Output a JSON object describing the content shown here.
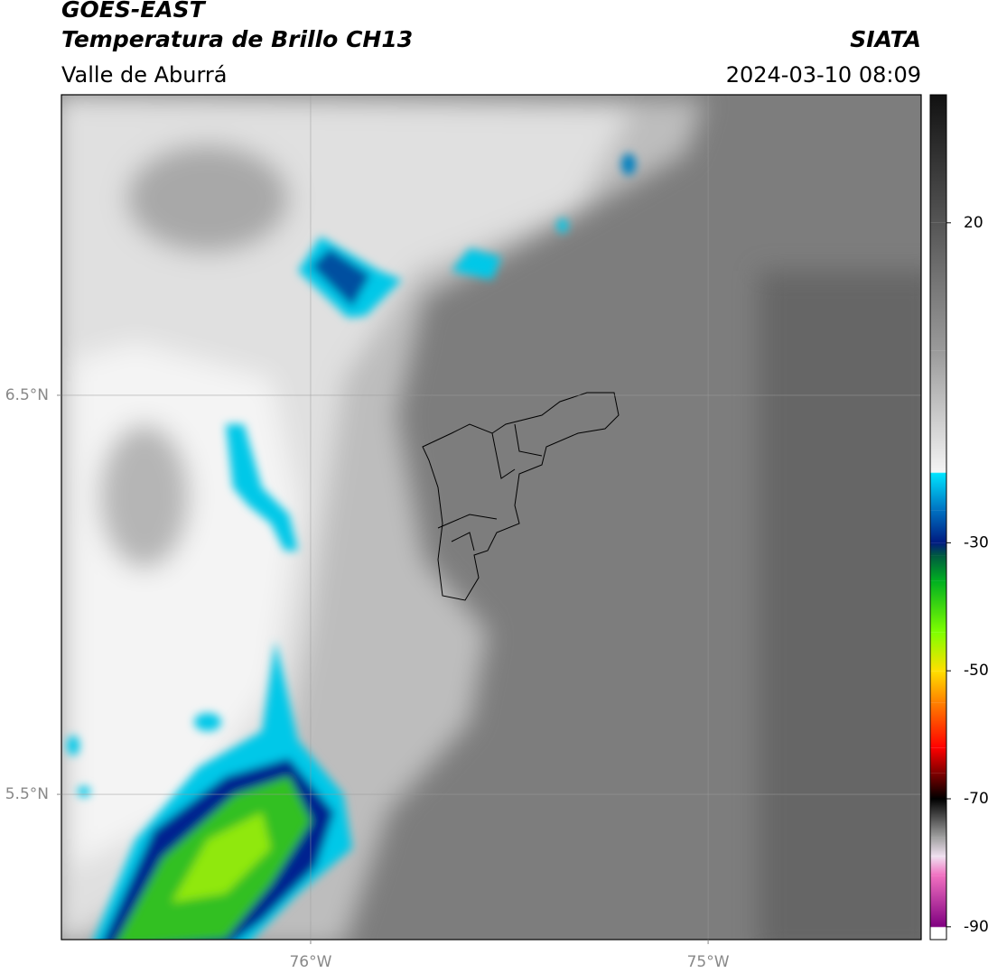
{
  "chart_data": {
    "type": "map",
    "title": "GOES-EAST",
    "subtitle": "Temperatura de Brillo CH13",
    "region": "Valle de Aburrá",
    "source": "SIATA",
    "datetime": "2024-03-10 08:09",
    "xlim": [
      -76.627,
      -74.464
    ],
    "ylim": [
      5.136,
      7.253
    ],
    "xticks": [
      {
        "value": -76,
        "label": "76°W"
      },
      {
        "value": -75,
        "label": "75°W"
      }
    ],
    "yticks": [
      {
        "value": 6.5,
        "label": "6.5°N"
      },
      {
        "value": 5.5,
        "label": "5.5°N"
      }
    ],
    "grid": true,
    "colorbar": {
      "lim": [
        -92,
        40
      ],
      "ticks": [
        20,
        -30,
        -50,
        -70,
        -90
      ],
      "stops": [
        [
          40,
          "#111111"
        ],
        [
          20,
          "#555555"
        ],
        [
          0,
          "#9a9a9a"
        ],
        [
          -19,
          "#f4f4f4"
        ],
        [
          -19.1,
          "#00e5ff"
        ],
        [
          -25,
          "#0070c0"
        ],
        [
          -30,
          "#001a80"
        ],
        [
          -32,
          "#005a40"
        ],
        [
          -36,
          "#00b020"
        ],
        [
          -44,
          "#80ff00"
        ],
        [
          -50,
          "#ffe000"
        ],
        [
          -55,
          "#ff8000"
        ],
        [
          -62,
          "#ff0000"
        ],
        [
          -66,
          "#800000"
        ],
        [
          -70,
          "#000000"
        ],
        [
          -76,
          "#a0a0a0"
        ],
        [
          -79,
          "#f0e0f0"
        ],
        [
          -82,
          "#f070c0"
        ],
        [
          -90,
          "#800080"
        ],
        [
          -90.1,
          "#ffffff"
        ],
        [
          -92,
          "#ffffff"
        ]
      ]
    }
  }
}
